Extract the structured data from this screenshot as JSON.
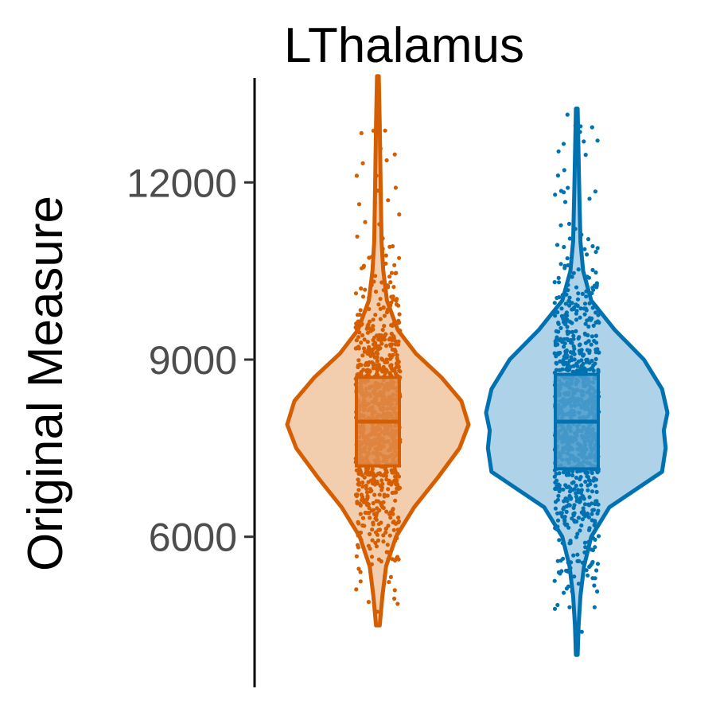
{
  "chart_data": {
    "type": "violin",
    "title": "LThalamus",
    "xlabel": "",
    "ylabel": "Original Measure",
    "ylim": [
      3450,
      14550
    ],
    "yticks": [
      {
        "value": 6000,
        "label": "6000"
      },
      {
        "value": 9000,
        "label": "9000"
      },
      {
        "value": 12000,
        "label": "12000"
      }
    ],
    "grid": false,
    "legend": "none",
    "series": [
      {
        "color": "#D55E00",
        "fill": "#F2CDAE",
        "box_fill": "#E08B4A",
        "min": 4500,
        "max": 13800,
        "q1": 7200,
        "median": 7950,
        "q3": 8700,
        "density": [
          [
            4500,
            0.02
          ],
          [
            5000,
            0.05
          ],
          [
            5500,
            0.09
          ],
          [
            6000,
            0.2
          ],
          [
            6500,
            0.4
          ],
          [
            7000,
            0.66
          ],
          [
            7500,
            0.9
          ],
          [
            7900,
            1.0
          ],
          [
            8300,
            0.92
          ],
          [
            8700,
            0.7
          ],
          [
            9100,
            0.42
          ],
          [
            9500,
            0.22
          ],
          [
            10000,
            0.1
          ],
          [
            10500,
            0.06
          ],
          [
            11000,
            0.04
          ],
          [
            12000,
            0.03
          ],
          [
            13000,
            0.02
          ],
          [
            13800,
            0.01
          ]
        ]
      },
      {
        "color": "#0072B2",
        "fill": "#AED2E8",
        "box_fill": "#4F9FCD",
        "min": 4000,
        "max": 13250,
        "q1": 7150,
        "median": 7950,
        "q3": 8750,
        "density": [
          [
            4000,
            0.01
          ],
          [
            4500,
            0.02
          ],
          [
            5000,
            0.04
          ],
          [
            5500,
            0.08
          ],
          [
            6000,
            0.16
          ],
          [
            6500,
            0.36
          ],
          [
            7100,
            0.94
          ],
          [
            7500,
            0.98
          ],
          [
            7800,
            0.96
          ],
          [
            8100,
            1.0
          ],
          [
            8500,
            0.94
          ],
          [
            9000,
            0.74
          ],
          [
            9500,
            0.42
          ],
          [
            10000,
            0.16
          ],
          [
            10500,
            0.07
          ],
          [
            11000,
            0.04
          ],
          [
            12000,
            0.025
          ],
          [
            13250,
            0.01
          ]
        ]
      }
    ]
  }
}
